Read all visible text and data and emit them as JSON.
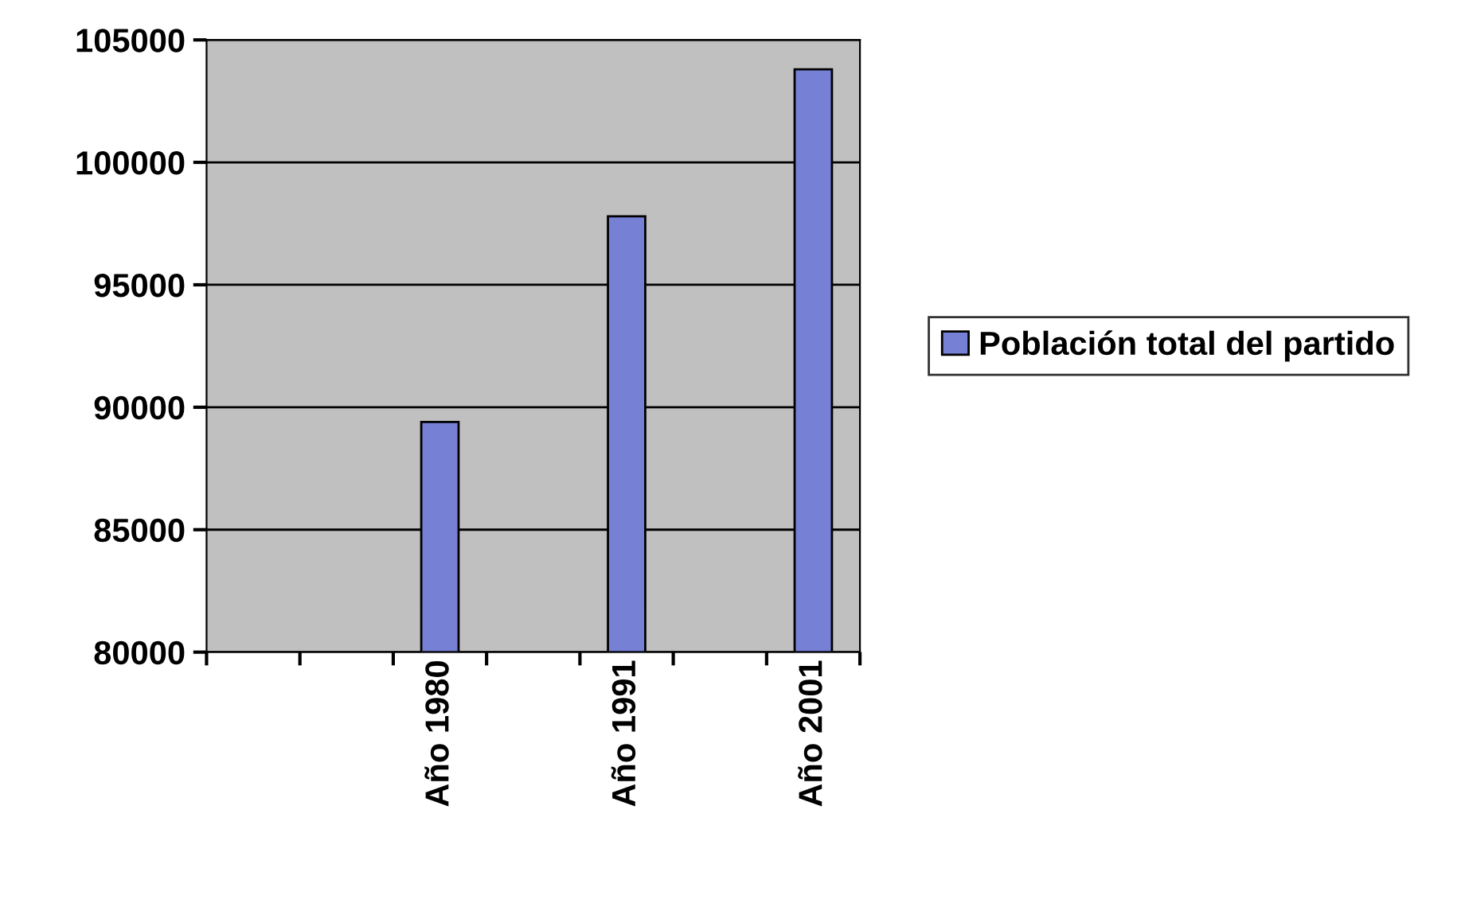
{
  "chart_data": {
    "type": "bar",
    "categories": [
      null,
      null,
      "Año 1980",
      null,
      "Año 1991",
      null,
      "Año 2001"
    ],
    "series": [
      {
        "name": "Población total del partido",
        "color": "#7680d4",
        "values": [
          null,
          null,
          89400,
          null,
          97800,
          null,
          103800
        ]
      }
    ],
    "ylim": [
      80000,
      105000
    ],
    "yticks": [
      80000,
      85000,
      90000,
      95000,
      100000,
      105000
    ],
    "grid": "y",
    "legend": "right"
  }
}
